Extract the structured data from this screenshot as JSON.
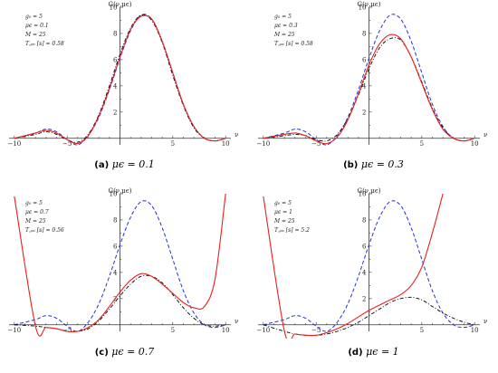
{
  "colors": {
    "red": "#e8201c",
    "blue": "#1f2fe0",
    "black": "#000000"
  },
  "chart_data": [
    {
      "type": "line",
      "caption_tag": "(a)",
      "caption_expr": "μϵ = 0.1",
      "ylabel": "G(ν,μϵ)",
      "xlabel": "ν",
      "xlim": [
        -10.5,
        10.5
      ],
      "ylim": [
        -0.5,
        10
      ],
      "xticks": [
        "−10",
        "−5",
        "5",
        "10"
      ],
      "xtick_values": [
        -10,
        -5,
        5,
        10
      ],
      "yticks": [
        "2",
        "4",
        "6",
        "8",
        "10"
      ],
      "ytick_values": [
        2,
        4,
        6,
        8,
        10
      ],
      "params": [
        "g₀ = 5",
        "μϵ = 0.1",
        "M = 25",
        "T꜀ₚᵤ [s] = 0.58"
      ],
      "series_points": {
        "x": [
          -10,
          -8,
          -7,
          -6,
          -5,
          -4,
          -3,
          -2,
          -1,
          0,
          1,
          2,
          3,
          4,
          5,
          6,
          7,
          8,
          9,
          10
        ],
        "blue_dashed": [
          0.0,
          0.4,
          0.7,
          0.5,
          -0.1,
          -0.5,
          0.2,
          1.6,
          3.7,
          6.1,
          8.2,
          9.4,
          9.1,
          7.4,
          5.0,
          2.6,
          0.9,
          0.0,
          -0.2,
          0.0
        ],
        "black_dashdot": [
          0.0,
          0.3,
          0.5,
          0.3,
          -0.1,
          -0.3,
          0.3,
          1.8,
          4.0,
          6.4,
          8.4,
          9.4,
          9.0,
          7.3,
          4.8,
          2.5,
          0.8,
          0.0,
          -0.2,
          0.0
        ],
        "red_solid": [
          0.0,
          0.4,
          0.6,
          0.4,
          -0.1,
          -0.4,
          0.2,
          1.7,
          3.8,
          6.2,
          8.3,
          9.3,
          9.1,
          7.4,
          5.0,
          2.6,
          0.9,
          0.0,
          -0.2,
          0.0
        ]
      }
    },
    {
      "type": "line",
      "caption_tag": "(b)",
      "caption_expr": "μϵ = 0.3",
      "ylabel": "G(ν,μϵ)",
      "xlabel": "ν",
      "xlim": [
        -10.5,
        10.5
      ],
      "ylim": [
        -0.5,
        10
      ],
      "xticks": [
        "−10",
        "−5",
        "5",
        "10"
      ],
      "xtick_values": [
        -10,
        -5,
        5,
        10
      ],
      "yticks": [
        "2",
        "4",
        "6",
        "8",
        "10"
      ],
      "ytick_values": [
        2,
        4,
        6,
        8,
        10
      ],
      "params": [
        "g₀ = 5",
        "μϵ = 0.3",
        "M = 25",
        "T꜀ₚᵤ [s] = 0.58"
      ],
      "series_points": {
        "x": [
          -10,
          -8,
          -7,
          -6,
          -5,
          -4,
          -3,
          -2,
          -1,
          0,
          1,
          2,
          3,
          4,
          5,
          6,
          7,
          8,
          9,
          10
        ],
        "blue_dashed": [
          0.0,
          0.4,
          0.7,
          0.5,
          -0.1,
          -0.5,
          0.2,
          1.6,
          3.7,
          6.1,
          8.2,
          9.4,
          9.1,
          7.4,
          5.0,
          2.6,
          0.9,
          0.0,
          -0.2,
          0.0
        ],
        "black_dashdot": [
          0.0,
          0.2,
          0.3,
          0.2,
          -0.1,
          -0.2,
          0.3,
          1.5,
          3.3,
          5.3,
          6.9,
          7.6,
          7.5,
          6.2,
          4.3,
          2.3,
          0.8,
          0.0,
          -0.2,
          0.0
        ],
        "red_solid": [
          0.0,
          0.3,
          0.4,
          0.2,
          -0.2,
          -0.4,
          0.1,
          1.4,
          3.4,
          5.6,
          7.2,
          7.9,
          7.6,
          6.2,
          4.2,
          2.2,
          0.7,
          0.0,
          -0.2,
          0.0
        ]
      }
    },
    {
      "type": "line",
      "caption_tag": "(c)",
      "caption_expr": "μϵ = 0.7",
      "ylabel": "G(ν,μϵ)",
      "xlabel": "ν",
      "xlim": [
        -10.5,
        10.5
      ],
      "ylim": [
        -0.5,
        10
      ],
      "xticks": [
        "−10",
        "−5",
        "5",
        "10"
      ],
      "xtick_values": [
        -10,
        -5,
        5,
        10
      ],
      "yticks": [
        "2",
        "4",
        "6",
        "8",
        "10"
      ],
      "ytick_values": [
        2,
        4,
        6,
        8,
        10
      ],
      "params": [
        "g₀ = 5",
        "μϵ = 0.7",
        "M = 25",
        "T꜀ₚᵤ [s] = 0.56"
      ],
      "series_points": {
        "x": [
          -10,
          -8,
          -7,
          -6,
          -5,
          -4,
          -3,
          -2,
          -1,
          0,
          1,
          2,
          3,
          4,
          5,
          6,
          7,
          8,
          9,
          10
        ],
        "blue_dashed": [
          0.0,
          0.4,
          0.7,
          0.5,
          -0.1,
          -0.5,
          0.2,
          1.6,
          3.7,
          6.1,
          8.2,
          9.4,
          9.1,
          7.4,
          5.0,
          2.6,
          0.9,
          0.0,
          -0.2,
          0.0
        ],
        "black_dashdot": [
          0.0,
          -0.1,
          -0.2,
          -0.3,
          -0.5,
          -0.5,
          -0.3,
          0.3,
          1.2,
          2.2,
          3.1,
          3.7,
          3.7,
          3.2,
          2.3,
          1.3,
          0.5,
          0.0,
          -0.1,
          0.0
        ],
        "red_solid": [
          9.8,
          -0.1,
          -0.2,
          -0.3,
          -0.5,
          -0.5,
          -0.2,
          0.4,
          1.4,
          2.5,
          3.4,
          3.9,
          3.7,
          3.1,
          2.4,
          1.7,
          1.3,
          1.4,
          3.5,
          10.0
        ]
      }
    },
    {
      "type": "line",
      "caption_tag": "(d)",
      "caption_expr": "μϵ = 1",
      "ylabel": "G(ν,μϵ)",
      "xlabel": "ν",
      "xlim": [
        -10.5,
        10.5
      ],
      "ylim": [
        -0.5,
        10
      ],
      "xticks": [
        "−10",
        "−5",
        "5",
        "10"
      ],
      "xtick_values": [
        -10,
        -5,
        5,
        10
      ],
      "yticks": [
        "2",
        "4",
        "6",
        "8",
        "10"
      ],
      "ytick_values": [
        2,
        4,
        6,
        8,
        10
      ],
      "params": [
        "g₀ = 5",
        "μϵ = 1",
        "M = 25",
        "T꜀ₚᵤ [s] = 5.2"
      ],
      "series_points": {
        "x": [
          -10,
          -8,
          -7,
          -6,
          -5,
          -4,
          -3,
          -2,
          -1,
          0,
          1,
          2,
          3,
          4,
          5,
          6,
          7,
          8,
          9,
          10
        ],
        "blue_dashed": [
          0.0,
          0.4,
          0.7,
          0.5,
          -0.1,
          -0.5,
          0.2,
          1.6,
          3.7,
          6.1,
          8.2,
          9.4,
          9.1,
          7.4,
          5.0,
          2.6,
          0.9,
          0.0,
          -0.2,
          0.0
        ],
        "black_dashdot": [
          0.0,
          -0.5,
          -0.7,
          -0.8,
          -0.8,
          -0.7,
          -0.5,
          -0.2,
          0.2,
          0.7,
          1.2,
          1.7,
          2.0,
          2.1,
          1.9,
          1.4,
          0.9,
          0.5,
          0.2,
          0.0
        ],
        "red_solid": [
          9.8,
          -0.5,
          -0.7,
          -0.8,
          -0.8,
          -0.6,
          -0.3,
          0.1,
          0.6,
          1.1,
          1.5,
          1.9,
          2.3,
          3.0,
          4.4,
          7.0,
          10.0,
          null,
          null,
          null
        ]
      }
    }
  ]
}
